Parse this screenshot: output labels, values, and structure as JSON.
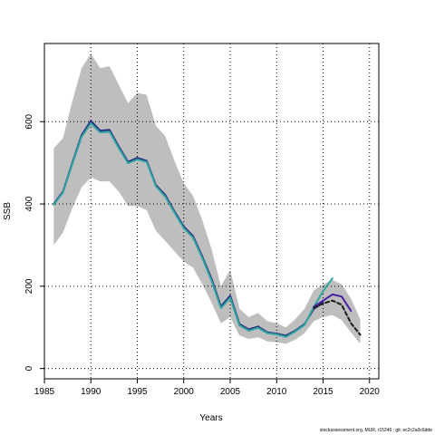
{
  "chart_data": {
    "type": "line",
    "title": "",
    "xlabel": "Years",
    "ylabel": "SSB",
    "xlim": [
      1985,
      2021
    ],
    "ylim": [
      -25,
      790
    ],
    "xticks": [
      1985,
      1990,
      1995,
      2000,
      2005,
      2010,
      2015,
      2020
    ],
    "yticks": [
      0,
      200,
      400,
      600
    ],
    "grid": true,
    "grid_style": "dotted",
    "footnote": "stockassessment.org, MUR, r15246 ; git: ec2c2a0c6dde",
    "band": {
      "color": "#bebebe",
      "x": [
        1986,
        1987,
        1988,
        1989,
        1990,
        1991,
        1992,
        1993,
        1994,
        1995,
        1996,
        1997,
        1998,
        1999,
        2000,
        2001,
        2002,
        2003,
        2004,
        2005,
        2006,
        2007,
        2008,
        2009,
        2010,
        2011,
        2012,
        2013,
        2014,
        2015,
        2016,
        2017,
        2018,
        2019
      ],
      "upper": [
        535,
        560,
        650,
        730,
        765,
        730,
        735,
        690,
        645,
        670,
        665,
        590,
        565,
        505,
        450,
        420,
        360,
        290,
        200,
        240,
        145,
        125,
        135,
        115,
        110,
        100,
        120,
        145,
        190,
        205,
        215,
        205,
        170,
        120
      ],
      "lower": [
        300,
        330,
        390,
        440,
        465,
        455,
        455,
        430,
        395,
        395,
        385,
        335,
        310,
        285,
        260,
        245,
        205,
        160,
        110,
        125,
        80,
        72,
        76,
        66,
        64,
        60,
        70,
        86,
        115,
        125,
        130,
        118,
        88,
        60
      ]
    },
    "series": [
      {
        "color": "#2b2d82",
        "width": 2,
        "dash": "",
        "x": [
          1986,
          1987,
          1988,
          1989,
          1990,
          1991,
          1992,
          1993,
          1994,
          1995,
          1996,
          1997,
          1998,
          1999,
          2000,
          2001,
          2002,
          2003,
          2004,
          2005,
          2006,
          2007,
          2008,
          2009,
          2010,
          2011,
          2012,
          2013,
          2014,
          2015
        ],
        "values": [
          400,
          430,
          500,
          567,
          602,
          578,
          580,
          540,
          502,
          512,
          505,
          446,
          422,
          382,
          345,
          322,
          272,
          218,
          151,
          177,
          108,
          95,
          102,
          88,
          85,
          80,
          92,
          108,
          145,
          160
        ]
      },
      {
        "color": "#2ea5a0",
        "width": 2,
        "dash": "",
        "x": [
          1986,
          1987,
          1988,
          1989,
          1990,
          1991,
          1992,
          1993,
          1994,
          1995,
          1996,
          1997,
          1998,
          1999,
          2000,
          2001,
          2002,
          2003,
          2004,
          2005,
          2006,
          2007,
          2008,
          2009,
          2010,
          2011,
          2012,
          2013,
          2014,
          2015,
          2016
        ],
        "values": [
          398,
          428,
          497,
          563,
          596,
          574,
          576,
          536,
          499,
          508,
          502,
          443,
          418,
          379,
          341,
          318,
          268,
          213,
          147,
          172,
          105,
          92,
          99,
          86,
          83,
          77,
          90,
          106,
          150,
          188,
          219
        ]
      },
      {
        "color": "#4b1fa5",
        "width": 2,
        "dash": "",
        "x": [
          2014,
          2015,
          2016,
          2017,
          2018
        ],
        "values": [
          150,
          165,
          180,
          175,
          140
        ]
      },
      {
        "color": "#1a1a1a",
        "width": 2,
        "dash": "4,3",
        "x": [
          2014,
          2015,
          2016,
          2017,
          2018,
          2019
        ],
        "values": [
          148,
          158,
          165,
          155,
          110,
          82
        ]
      }
    ]
  }
}
